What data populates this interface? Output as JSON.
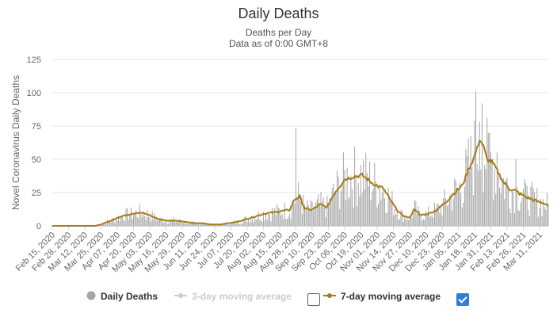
{
  "title": "Daily Deaths",
  "subtitle": "Deaths per Day",
  "subtitle2": "Data as of 0:00 GMT+8",
  "colors": {
    "bars": "#a6a6a6",
    "ma7": "#a67b1a",
    "ma3": "#cccccc",
    "grid": "#e6e6e6",
    "checkbox_checked": "#2f7ed8"
  },
  "legend": {
    "daily": "Daily Deaths",
    "ma3": "3-day moving average",
    "ma7": "7-day moving average",
    "ma3_checked": false,
    "ma7_checked": true
  },
  "chart_data": {
    "type": "bar",
    "title": "Daily Deaths",
    "subtitle": "Deaths per Day",
    "ylabel": "Novel Coronavirus Daily Deaths",
    "xlabel": "",
    "ylim": [
      0,
      125
    ],
    "yticks": [
      0,
      25,
      50,
      75,
      100,
      125
    ],
    "grid": true,
    "legend_position": "bottom",
    "x_start": "2020-02-15",
    "x_end": "2021-03-18",
    "x_tick_labels": [
      "Feb 15, 2020",
      "Feb 28, 2020",
      "Mar 12, 2020",
      "Mar 25, 2020",
      "Apr 07, 2020",
      "Apr 20, 2020",
      "May 03, 2020",
      "May 16, 2020",
      "May 29, 2020",
      "Jun 11, 2020",
      "Jun 24, 2020",
      "Jul 07, 2020",
      "Jul 20, 2020",
      "Aug 02, 2020",
      "Aug 15, 2020",
      "Aug 28, 2020",
      "Sep 10, 2020",
      "Sep 23, 2020",
      "Oct 06, 2020",
      "Oct 19, 2020",
      "Nov 01, 2020",
      "Nov 14, 2020",
      "Nov 27, 2020",
      "Dec 10, 2020",
      "Dec 23, 2020",
      "Jan 05, 2021",
      "Jan 18, 2021",
      "Jan 31, 2021",
      "Feb 13, 2021",
      "Feb 26, 2021",
      "Mar 11, 2021"
    ],
    "series": [
      {
        "name": "7-day moving average",
        "type": "line",
        "points": [
          [
            "2020-02-15",
            0
          ],
          [
            "2020-03-20",
            0
          ],
          [
            "2020-03-25",
            1
          ],
          [
            "2020-03-30",
            3
          ],
          [
            "2020-04-05",
            5
          ],
          [
            "2020-04-12",
            8
          ],
          [
            "2020-04-20",
            9
          ],
          [
            "2020-04-27",
            10
          ],
          [
            "2020-05-03",
            8
          ],
          [
            "2020-05-10",
            5
          ],
          [
            "2020-05-17",
            4
          ],
          [
            "2020-05-24",
            4
          ],
          [
            "2020-05-31",
            3
          ],
          [
            "2020-06-07",
            2
          ],
          [
            "2020-06-14",
            2
          ],
          [
            "2020-06-21",
            1
          ],
          [
            "2020-06-28",
            1
          ],
          [
            "2020-07-05",
            2
          ],
          [
            "2020-07-12",
            3
          ],
          [
            "2020-07-19",
            5
          ],
          [
            "2020-07-26",
            7
          ],
          [
            "2020-08-02",
            9
          ],
          [
            "2020-08-09",
            10
          ],
          [
            "2020-08-16",
            11
          ],
          [
            "2020-08-23",
            12
          ],
          [
            "2020-08-27",
            20
          ],
          [
            "2020-08-31",
            22
          ],
          [
            "2020-09-04",
            13
          ],
          [
            "2020-09-10",
            12
          ],
          [
            "2020-09-16",
            16
          ],
          [
            "2020-09-22",
            14
          ],
          [
            "2020-09-28",
            25
          ],
          [
            "2020-10-02",
            30
          ],
          [
            "2020-10-06",
            35
          ],
          [
            "2020-10-13",
            37
          ],
          [
            "2020-10-20",
            38
          ],
          [
            "2020-10-27",
            33
          ],
          [
            "2020-11-01",
            30
          ],
          [
            "2020-11-06",
            28
          ],
          [
            "2020-11-11",
            20
          ],
          [
            "2020-11-16",
            13
          ],
          [
            "2020-11-21",
            8
          ],
          [
            "2020-11-27",
            6
          ],
          [
            "2020-12-01",
            13
          ],
          [
            "2020-12-05",
            8
          ],
          [
            "2020-12-12",
            9
          ],
          [
            "2020-12-19",
            12
          ],
          [
            "2020-12-26",
            18
          ],
          [
            "2021-01-02",
            25
          ],
          [
            "2021-01-08",
            30
          ],
          [
            "2021-01-13",
            42
          ],
          [
            "2021-01-17",
            50
          ],
          [
            "2021-01-20",
            58
          ],
          [
            "2021-01-22",
            65
          ],
          [
            "2021-01-25",
            60
          ],
          [
            "2021-01-28",
            50
          ],
          [
            "2021-02-01",
            48
          ],
          [
            "2021-02-06",
            40
          ],
          [
            "2021-02-10",
            33
          ],
          [
            "2021-02-15",
            28
          ],
          [
            "2021-02-20",
            26
          ],
          [
            "2021-02-27",
            22
          ],
          [
            "2021-03-05",
            20
          ],
          [
            "2021-03-10",
            18
          ],
          [
            "2021-03-15",
            17
          ],
          [
            "2021-03-18",
            15
          ]
        ]
      },
      {
        "name": "Daily Deaths",
        "type": "bar",
        "spikes": [
          [
            "2020-08-28",
            73
          ],
          [
            "2021-01-19",
            101
          ],
          [
            "2021-01-22",
            78
          ],
          [
            "2021-01-24",
            92
          ],
          [
            "2021-01-30",
            70
          ],
          [
            "2021-02-05",
            55
          ],
          [
            "2021-02-20",
            50
          ],
          [
            "2021-03-01",
            30
          ]
        ]
      }
    ]
  }
}
